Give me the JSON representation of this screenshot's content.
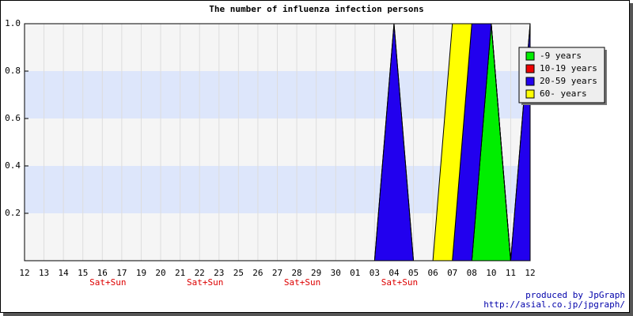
{
  "chart_data": {
    "type": "stacked-area",
    "title": "The number of influenza infection persons",
    "categories": [
      "12",
      "13",
      "14",
      "15",
      "16",
      "17",
      "19",
      "20",
      "21",
      "22",
      "23",
      "25",
      "26",
      "27",
      "28",
      "29",
      "30",
      "01",
      "03",
      "04",
      "05",
      "06",
      "07",
      "08",
      "10",
      "11",
      "12"
    ],
    "sublabels": [
      null,
      null,
      null,
      null,
      "Sat+Sun",
      null,
      null,
      null,
      null,
      "Sat+Sun",
      null,
      null,
      null,
      null,
      "Sat+Sun",
      null,
      null,
      null,
      null,
      "Sat+Sun",
      null,
      null,
      null,
      null,
      null,
      null,
      null
    ],
    "series": [
      {
        "name": "-9 years",
        "color": "#00ee00",
        "values": [
          0,
          0,
          0,
          0,
          0,
          0,
          0,
          0,
          0,
          0,
          0,
          0,
          0,
          0,
          0,
          0,
          0,
          0,
          0,
          0,
          0,
          0,
          0,
          0,
          1,
          0,
          0
        ]
      },
      {
        "name": "10-19 years",
        "color": "#ee0000",
        "values": [
          0,
          0,
          0,
          0,
          0,
          0,
          0,
          0,
          0,
          0,
          0,
          0,
          0,
          0,
          0,
          0,
          0,
          0,
          0,
          0,
          0,
          0,
          0,
          0,
          0,
          0,
          0
        ]
      },
      {
        "name": "20-59 years",
        "color": "#2200ee",
        "values": [
          0,
          0,
          0,
          0,
          0,
          0,
          0,
          0,
          0,
          0,
          0,
          0,
          0,
          0,
          0,
          0,
          0,
          0,
          0,
          1,
          0,
          0,
          0,
          1,
          0,
          0,
          1
        ]
      },
      {
        "name": "60- years",
        "color": "#ffff00",
        "values": [
          0,
          0,
          0,
          0,
          0,
          0,
          0,
          0,
          0,
          0,
          0,
          0,
          0,
          0,
          0,
          0,
          0,
          0,
          0,
          0,
          0,
          0,
          1,
          0,
          0,
          0,
          0
        ]
      }
    ],
    "ylim": [
      0,
      1
    ],
    "yticks": [
      0.2,
      0.4,
      0.6,
      0.8,
      {
        "value": 1.0,
        "label": "1.0"
      }
    ],
    "grid": true,
    "legend_position": "top-right",
    "footer": [
      "produced by JpGraph",
      "http://asial.co.jp/jpgraph/"
    ]
  }
}
